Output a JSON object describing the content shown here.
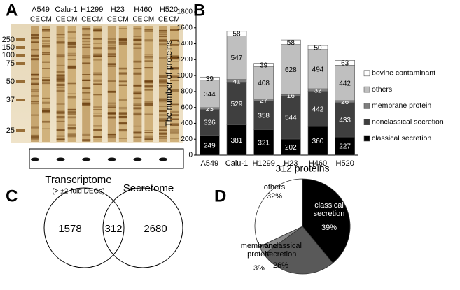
{
  "panels": {
    "letters": [
      "A",
      "B",
      "C",
      "D"
    ]
  },
  "gel": {
    "cell_lines": [
      "A549",
      "Calu-1",
      "H1299",
      "H23",
      "H460",
      "H520"
    ],
    "lanes": [
      "CE",
      "CM"
    ],
    "markers": [
      250,
      150,
      100,
      75,
      50,
      37,
      25
    ]
  },
  "venn": {
    "left_title": "Transcriptome",
    "left_subtitle": "(> ±2-fold DEGs)",
    "right_title": "Secretome",
    "left_only": 1578,
    "overlap": 312,
    "right_only": 2680
  },
  "chart_data": [
    {
      "type": "bar",
      "ylabel": "The number of proteins",
      "categories": [
        "A549",
        "Calu-1",
        "H1299",
        "H23",
        "H460",
        "H520"
      ],
      "series": [
        {
          "name": "classical secretion",
          "color": "#000000",
          "values": [
            249,
            381,
            321,
            202,
            360,
            227
          ]
        },
        {
          "name": "nonclassical secretion",
          "color": "#3f3f3f",
          "values": [
            326,
            529,
            358,
            544,
            442,
            433
          ]
        },
        {
          "name": "membrane protein",
          "color": "#7f7f7f",
          "values": [
            23,
            41,
            27,
            16,
            32,
            26
          ]
        },
        {
          "name": "others",
          "color": "#bfbfbf",
          "values": [
            344,
            547,
            408,
            628,
            494,
            442
          ]
        },
        {
          "name": "bovine contaminant",
          "color": "#ffffff",
          "values": [
            39,
            58,
            39,
            58,
            50,
            63
          ]
        }
      ],
      "ylim": [
        0,
        1800
      ],
      "yticks": [
        0,
        200,
        400,
        600,
        800,
        1000,
        1200,
        1400,
        1600,
        1800
      ],
      "grid": false,
      "legend": "right"
    },
    {
      "type": "pie",
      "title": "312 proteins",
      "categories": [
        "classical secretion",
        "nonclassical secretion",
        "membrane protein",
        "others"
      ],
      "values": [
        39,
        26,
        3,
        32
      ],
      "value_labels": [
        "39%",
        "26%",
        "3%",
        "32%"
      ],
      "colors": [
        "#000000",
        "#595959",
        "#8c8c8c",
        "#ffffff"
      ]
    }
  ]
}
